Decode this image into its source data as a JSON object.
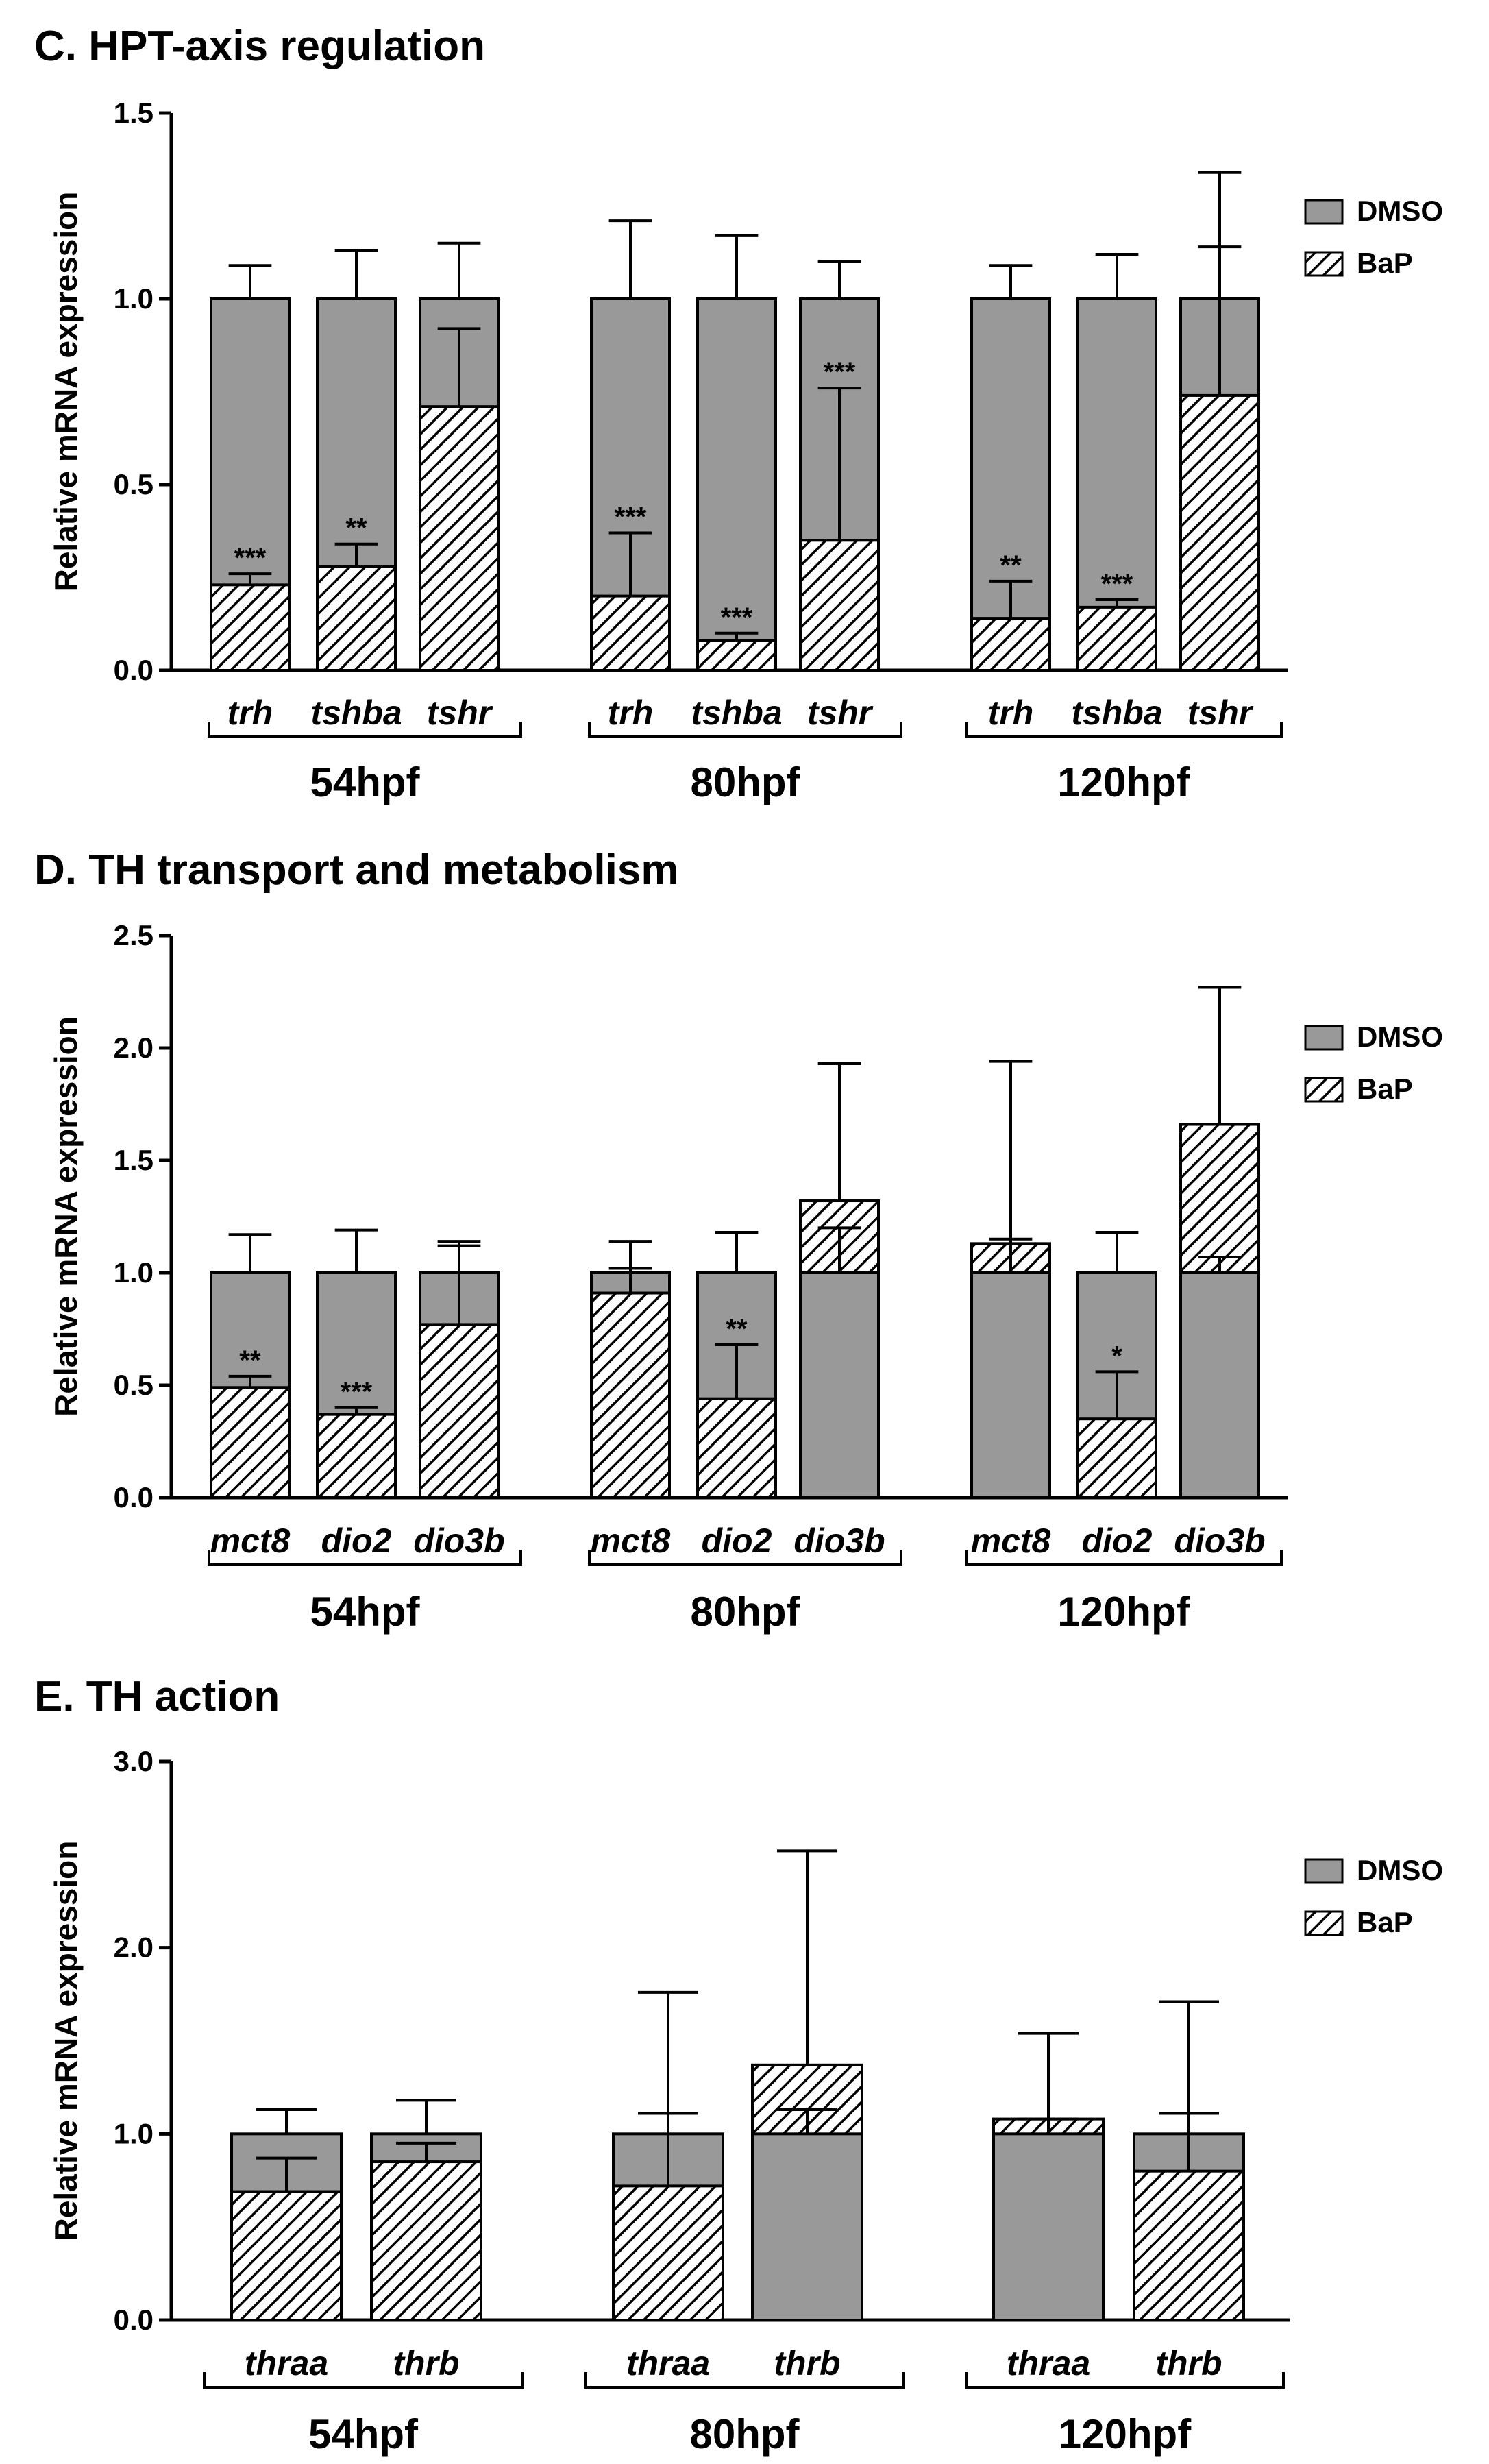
{
  "colors": {
    "dmso_fill": "#999999",
    "axis": "#000000",
    "background": "#ffffff"
  },
  "legend": {
    "dmso": "DMSO",
    "bap": "BaP"
  },
  "chart_data": [
    {
      "type": "bar",
      "title": "C. HPT-axis regulation",
      "ylabel": "Relative mRNA expression",
      "ylim": [
        0,
        1.5
      ],
      "yticks": [
        "0.0",
        "0.5",
        "1.0",
        "1.5"
      ],
      "groups": [
        "54hpf",
        "80hpf",
        "120hpf"
      ],
      "genes": [
        "trh",
        "tshba",
        "tshr"
      ],
      "series": [
        {
          "name": "DMSO",
          "values": [
            1,
            1,
            1,
            1,
            1,
            1,
            1,
            1,
            1
          ],
          "error": [
            1.09,
            1.13,
            1.15,
            1.21,
            1.17,
            1.1,
            1.09,
            1.12,
            1.14
          ]
        },
        {
          "name": "BaP",
          "values": [
            0.23,
            0.28,
            0.71,
            0.2,
            0.08,
            0.35,
            0.14,
            0.17,
            0.74
          ],
          "error": [
            0.26,
            0.34,
            0.92,
            0.37,
            0.1,
            0.76,
            0.24,
            0.19,
            1.34
          ]
        }
      ],
      "significance": [
        "***",
        "**",
        "",
        "***",
        "***",
        "***",
        "**",
        "***",
        ""
      ],
      "legend_position": "top-right"
    },
    {
      "type": "bar",
      "title": "D. TH transport and metabolism",
      "ylabel": "Relative mRNA expression",
      "ylim": [
        0,
        2.5
      ],
      "yticks": [
        "0.0",
        "0.5",
        "1.0",
        "1.5",
        "2.0",
        "2.5"
      ],
      "groups": [
        "54hpf",
        "80hpf",
        "120hpf"
      ],
      "genes": [
        "mct8",
        "dio2",
        "dio3b"
      ],
      "series": [
        {
          "name": "DMSO",
          "values": [
            1,
            1,
            1,
            1,
            1,
            1,
            1,
            1,
            1
          ],
          "error": [
            1.17,
            1.19,
            1.14,
            1.14,
            1.18,
            1.2,
            1.94,
            1.18,
            1.07
          ]
        },
        {
          "name": "BaP",
          "values": [
            0.49,
            0.37,
            0.77,
            0.91,
            0.44,
            1.32,
            1.13,
            0.35,
            1.66
          ],
          "error": [
            0.54,
            0.4,
            1.12,
            1.02,
            0.68,
            1.93,
            1.15,
            0.56,
            2.27
          ]
        }
      ],
      "significance": [
        "**",
        "***",
        "",
        "",
        "**",
        "",
        "",
        "*",
        ""
      ],
      "legend_position": "top-right"
    },
    {
      "type": "bar",
      "title": "E. TH action",
      "ylabel": "Relative mRNA expression",
      "ylim": [
        0,
        3.0
      ],
      "yticks": [
        "0.0",
        "1.0",
        "2.0",
        "3.0"
      ],
      "groups": [
        "54hpf",
        "80hpf",
        "120hpf"
      ],
      "genes": [
        "thraa",
        "thrb"
      ],
      "series": [
        {
          "name": "DMSO",
          "values": [
            1,
            1,
            1,
            1,
            1,
            1
          ],
          "error": [
            1.13,
            1.18,
            1.11,
            1.13,
            1.54,
            1.11
          ]
        },
        {
          "name": "BaP",
          "values": [
            0.69,
            0.85,
            0.72,
            1.37,
            1.08,
            0.8
          ],
          "error": [
            0.87,
            0.95,
            1.76,
            2.52,
            1.08,
            1.71
          ]
        }
      ],
      "significance": [
        "",
        "",
        "",
        "",
        "",
        ""
      ],
      "legend_position": "top-right"
    }
  ]
}
